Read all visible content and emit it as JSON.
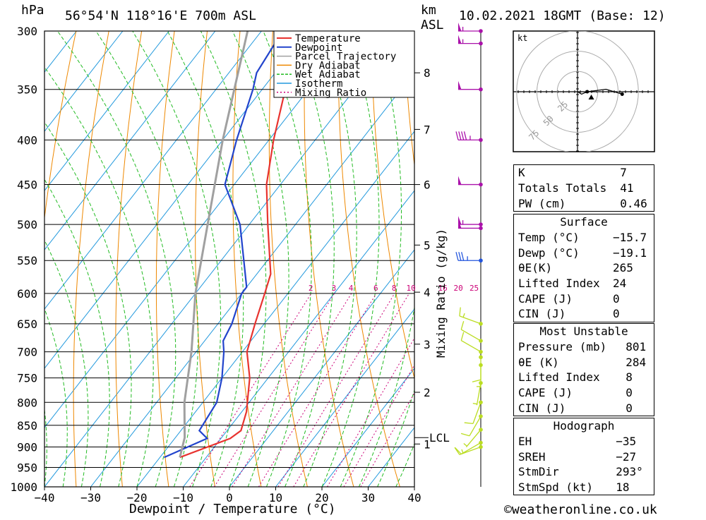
{
  "header": {
    "pressure_unit": "hPa",
    "location": "56°54'N  118°16'E  700m  ASL",
    "height_unit_line1": "km",
    "height_unit_line2": "ASL",
    "datetime": "10.02.2021  18GMT  (Base: 12)"
  },
  "footer": {
    "xaxis_title": "Dewpoint / Temperature (°C)",
    "yaxis_right_title": "Mixing Ratio (g/kg)",
    "copyright": "©weatheronline.co.uk"
  },
  "colors": {
    "temperature": "#e8332f",
    "dewpoint": "#2244cc",
    "parcel": "#a0a0a0",
    "dry_adiabat": "#ee8800",
    "wet_adiabat": "#22bb22",
    "isotherm": "#2299dd",
    "mixing_ratio": "#cc0077",
    "wind_upper": "#aa11aa",
    "wind_mid": "#2255dd",
    "wind_low": "#bbdd22"
  },
  "chart_data": {
    "type": "line",
    "title": "Skew-T log-P diagram",
    "xlabel": "Dewpoint / Temperature (°C)",
    "ylabel": "hPa",
    "xlim": [
      -40,
      40
    ],
    "ylim": [
      1000,
      300
    ],
    "pressure_ticks": [
      300,
      350,
      400,
      450,
      500,
      550,
      600,
      650,
      700,
      750,
      800,
      850,
      900,
      950,
      1000
    ],
    "temperature_ticks": [
      -40,
      -30,
      -20,
      -10,
      0,
      10,
      20,
      30,
      40
    ],
    "temperature_tick_labels": [
      "−40",
      "−30",
      "−20",
      "−10",
      "0",
      "10",
      "20",
      "30",
      "40"
    ],
    "km_ticks": [
      {
        "label": "8",
        "p": 335
      },
      {
        "label": "7",
        "p": 389
      },
      {
        "label": "6",
        "p": 450
      },
      {
        "label": "5",
        "p": 528
      },
      {
        "label": "4",
        "p": 598
      },
      {
        "label": "3",
        "p": 686
      },
      {
        "label": "2",
        "p": 779
      },
      {
        "label": "1",
        "p": 893
      }
    ],
    "lcl_label": "LCL",
    "lcl_pressure": 878,
    "mixing_ratio_labels": [
      "2",
      "3",
      "4",
      "6",
      "8",
      "10",
      "16",
      "20",
      "25"
    ],
    "mixing_ratio_values": [
      2,
      3,
      4,
      6,
      8,
      10,
      16,
      20,
      25
    ],
    "legend": [
      "Temperature",
      "Dewpoint",
      "Parcel Trajectory",
      "Dry Adiabat",
      "Wet Adiabat",
      "Isotherm",
      "Mixing Ratio"
    ],
    "series": [
      {
        "name": "Temperature",
        "points": [
          [
            925,
            -15.7
          ],
          [
            880,
            -8
          ],
          [
            862,
            -7
          ],
          [
            820,
            -9
          ],
          [
            750,
            -14
          ],
          [
            700,
            -19
          ],
          [
            650,
            -22
          ],
          [
            600,
            -25
          ],
          [
            570,
            -27
          ],
          [
            500,
            -36
          ],
          [
            450,
            -43
          ],
          [
            400,
            -49
          ],
          [
            350,
            -55
          ],
          [
            335,
            -58
          ],
          [
            318,
            -60
          ],
          [
            300,
            -55
          ]
        ]
      },
      {
        "name": "Dewpoint",
        "points": [
          [
            925,
            -19.1
          ],
          [
            880,
            -13
          ],
          [
            862,
            -16
          ],
          [
            800,
            -17
          ],
          [
            750,
            -20
          ],
          [
            700,
            -24
          ],
          [
            680,
            -26
          ],
          [
            650,
            -27
          ],
          [
            600,
            -30
          ],
          [
            590,
            -30
          ],
          [
            500,
            -42
          ],
          [
            450,
            -52
          ],
          [
            400,
            -57
          ],
          [
            350,
            -62
          ],
          [
            335,
            -64
          ],
          [
            310,
            -65
          ],
          [
            300,
            -62
          ]
        ]
      },
      {
        "name": "Parcel Trajectory",
        "points": [
          [
            925,
            -15.7
          ],
          [
            878,
            -18
          ],
          [
            800,
            -24
          ],
          [
            700,
            -31
          ],
          [
            600,
            -40
          ],
          [
            500,
            -49
          ],
          [
            400,
            -60
          ],
          [
            300,
            -73
          ]
        ]
      }
    ],
    "wind_barbs": [
      {
        "p": 300,
        "dir": 270,
        "speed_kt": 55
      },
      {
        "p": 310,
        "dir": 270,
        "speed_kt": 55
      },
      {
        "p": 350,
        "dir": 270,
        "speed_kt": 50
      },
      {
        "p": 400,
        "dir": 270,
        "speed_kt": 45
      },
      {
        "p": 450,
        "dir": 270,
        "speed_kt": 50
      },
      {
        "p": 500,
        "dir": 270,
        "speed_kt": 55
      },
      {
        "p": 505,
        "dir": 270,
        "speed_kt": 50
      },
      {
        "p": 550,
        "dir": 270,
        "speed_kt": 35
      },
      {
        "p": 650,
        "dir": 290,
        "speed_kt": 15
      },
      {
        "p": 680,
        "dir": 300,
        "speed_kt": 10
      },
      {
        "p": 700,
        "dir": 300,
        "speed_kt": 10
      },
      {
        "p": 710,
        "dir": 180,
        "speed_kt": 10
      },
      {
        "p": 725,
        "dir": 180,
        "speed_kt": 5
      },
      {
        "p": 760,
        "dir": 190,
        "speed_kt": 5
      },
      {
        "p": 800,
        "dir": 200,
        "speed_kt": 10
      },
      {
        "p": 830,
        "dir": 210,
        "speed_kt": 10
      },
      {
        "p": 860,
        "dir": 220,
        "speed_kt": 5
      },
      {
        "p": 890,
        "dir": 240,
        "speed_kt": 10
      },
      {
        "p": 900,
        "dir": 250,
        "speed_kt": 15
      }
    ],
    "hodograph": {
      "unit_label": "kt",
      "ring_labels": [
        "25",
        "50",
        "75"
      ],
      "ring_values": [
        25,
        50,
        75
      ],
      "trace": [
        [
          0,
          0
        ],
        [
          5,
          -3
        ],
        [
          12,
          0
        ],
        [
          35,
          3
        ],
        [
          55,
          -3
        ]
      ],
      "storm_motion": {
        "u": 17,
        "v": -7
      }
    }
  },
  "indices": {
    "general": [
      {
        "label": "K",
        "value": "7"
      },
      {
        "label": "Totals Totals",
        "value": "41"
      },
      {
        "label": "PW (cm)",
        "value": "0.46"
      }
    ],
    "surface_title": "Surface",
    "surface": [
      {
        "label": "Temp (°C)",
        "value": "−15.7"
      },
      {
        "label": "Dewp (°C)",
        "value": "−19.1"
      },
      {
        "label": "θE(K)",
        "value": "265"
      },
      {
        "label": "Lifted Index",
        "value": "24"
      },
      {
        "label": "CAPE (J)",
        "value": "0"
      },
      {
        "label": "CIN (J)",
        "value": "0"
      }
    ],
    "most_unstable_title": "Most Unstable",
    "most_unstable": [
      {
        "label": "Pressure (mb)",
        "value": "801"
      },
      {
        "label": "θE (K)",
        "value": "284"
      },
      {
        "label": "Lifted Index",
        "value": "8"
      },
      {
        "label": "CAPE (J)",
        "value": "0"
      },
      {
        "label": "CIN (J)",
        "value": "0"
      }
    ],
    "hodograph_title": "Hodograph",
    "hodograph": [
      {
        "label": "EH",
        "value": "−35"
      },
      {
        "label": "SREH",
        "value": "−27"
      },
      {
        "label": "StmDir",
        "value": "293°"
      },
      {
        "label": "StmSpd (kt)",
        "value": "18"
      }
    ]
  }
}
